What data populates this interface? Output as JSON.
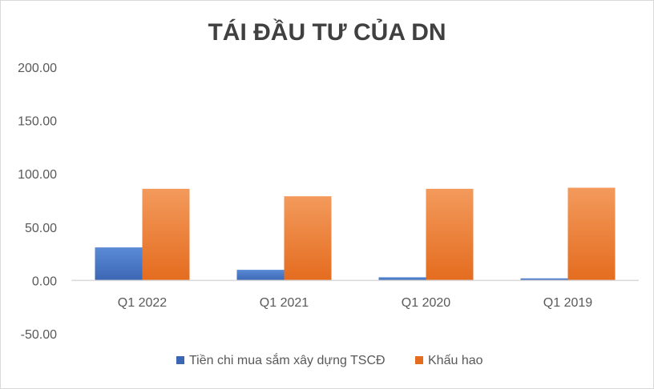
{
  "chart_data": {
    "type": "bar",
    "title": "TÁI ĐẦU TƯ CỦA DN",
    "xlabel": "",
    "ylabel": "",
    "categories": [
      "Q1 2022",
      "Q1 2021",
      "Q1 2020",
      "Q1 2019"
    ],
    "series": [
      {
        "name": "Tiền chi mua sắm xây dựng TSCĐ",
        "values": [
          31,
          10,
          3,
          2
        ],
        "color": "#4472C4"
      },
      {
        "name": "Khấu hao",
        "values": [
          86,
          79,
          86,
          87
        ],
        "color": "#ED7D31"
      }
    ],
    "ylim": [
      -50,
      200
    ],
    "yticks": [
      "200.00",
      "150.00",
      "100.00",
      "50.00",
      "0.00",
      "-50.00"
    ],
    "ytick_values": [
      200,
      150,
      100,
      50,
      0,
      -50
    ],
    "grid": false,
    "legend_position": "bottom"
  }
}
